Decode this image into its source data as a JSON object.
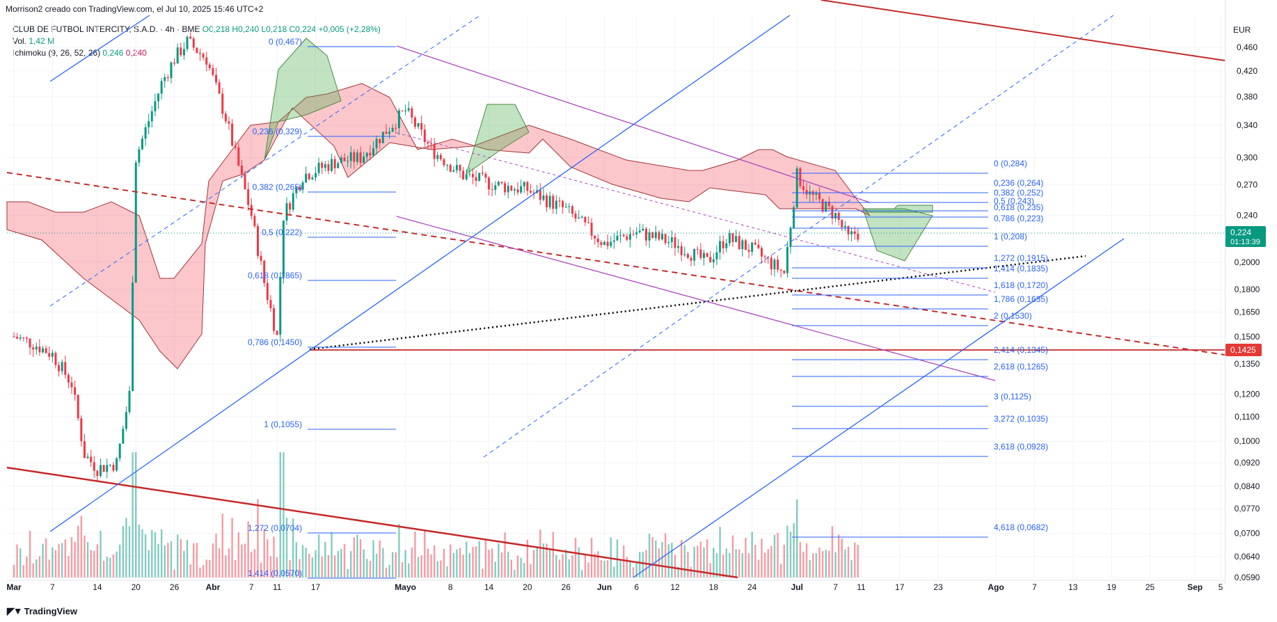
{
  "header": {
    "credit": "Morrison2 creado con TradingView.com, el Jul 10, 2025 15:46 UTC+2"
  },
  "legend": {
    "symbol": "CLUB DE FUTBOL INTERCITY, S.A.D. · 4h · BME",
    "ohlc": "O0,218 H0,240 L0,218 C0,224 +0,005 (+2,28%)",
    "volume_label": "Vol.",
    "volume_value": "1,42 M",
    "ichimoku_label": "Ichimoku (9, 26, 52, 26)",
    "ichimoku_a": "0,246",
    "ichimoku_b": "0,240"
  },
  "axis": {
    "currency": "EUR",
    "price_labels": [
      "0,460",
      "0,420",
      "0,380",
      "0,340",
      "0,300",
      "0,270",
      "0,240",
      "0,2000",
      "0,1800",
      "0,1650",
      "0,1500",
      "0,1350",
      "0,1200",
      "0,1100",
      "0,1000",
      "0,0920",
      "0,0840",
      "0,0770",
      "0,0700",
      "0,0640",
      "0,0590"
    ],
    "current_price": "0,224",
    "countdown": "01:13:39",
    "level_price": "0,1425",
    "time_labels": [
      "Mar",
      "7",
      "14",
      "20",
      "26",
      "Abr",
      "7",
      "11",
      "17",
      "Mayo",
      "8",
      "14",
      "20",
      "26",
      "Jun",
      "6",
      "12",
      "18",
      "24",
      "Jul",
      "7",
      "11",
      "17",
      "23",
      "Ago",
      "7",
      "13",
      "19",
      "25",
      "Sep",
      "5"
    ]
  },
  "fib_left": [
    "0 (0,467)",
    "0,236 (0,329)",
    "0,382 (0,265)",
    "0,5 (0,222)",
    "0,618 (0,1865)",
    "0,786 (0,1450)",
    "1 (0,1055)",
    "1,272 (0,0704)",
    "1,414 (0,0570)"
  ],
  "fib_right": [
    "0 (0,284)",
    "0,236 (0,264)",
    "0,382 (0,252)",
    "0,5 (0,243)",
    "0,618 (0,235)",
    "0,786 (0,223)",
    "1 (0,208)",
    "1,272 (0,1915)",
    "1,414 (0,1835)",
    "1,618 (0,1720)",
    "1,786 (0,1635)",
    "2 (0,1530)",
    "2,414 (0,1345)",
    "2,618 (0,1265)",
    "3 (0,1125)",
    "3,272 (0,1035)",
    "3,618 (0,0928)",
    "4,618 (0,0682)"
  ],
  "footer": {
    "brand": "TradingView"
  },
  "colors": {
    "up": "#089981",
    "down": "#f23645",
    "fib": "#2962ff",
    "channel": "#ab47bc",
    "trend": "#c62828"
  },
  "chart_data": {
    "type": "candlestick",
    "symbol": "CLUB DE FUTBOL INTERCITY, S.A.D.",
    "interval": "4h",
    "exchange": "BME",
    "currency": "EUR",
    "y_scale": "log",
    "last": {
      "open": 0.218,
      "high": 0.24,
      "low": 0.218,
      "close": 0.224,
      "change": 0.005,
      "change_pct": 2.28
    },
    "horizontal_level": 0.1425,
    "approx_closes": [
      {
        "x": "Mar 1",
        "y": 0.15
      },
      {
        "x": "Mar 4",
        "y": 0.146
      },
      {
        "x": "Mar 7",
        "y": 0.14
      },
      {
        "x": "Mar 10",
        "y": 0.125
      },
      {
        "x": "Mar 12",
        "y": 0.095
      },
      {
        "x": "Mar 14",
        "y": 0.09
      },
      {
        "x": "Mar 17",
        "y": 0.092
      },
      {
        "x": "Mar 19",
        "y": 0.12
      },
      {
        "x": "Mar 20",
        "y": 0.3
      },
      {
        "x": "Mar 24",
        "y": 0.4
      },
      {
        "x": "Mar 26",
        "y": 0.44
      },
      {
        "x": "Mar 28",
        "y": 0.47
      },
      {
        "x": "Mar 31",
        "y": 0.44
      },
      {
        "x": "Apr 3",
        "y": 0.35
      },
      {
        "x": "Apr 7",
        "y": 0.24
      },
      {
        "x": "Apr 9",
        "y": 0.185
      },
      {
        "x": "Apr 11",
        "y": 0.15
      },
      {
        "x": "Apr 12",
        "y": 0.24
      },
      {
        "x": "Apr 15",
        "y": 0.28
      },
      {
        "x": "Apr 20",
        "y": 0.295
      },
      {
        "x": "Apr 24",
        "y": 0.3
      },
      {
        "x": "May 1",
        "y": 0.36
      },
      {
        "x": "May 5",
        "y": 0.31
      },
      {
        "x": "May 10",
        "y": 0.28
      },
      {
        "x": "May 15",
        "y": 0.27
      },
      {
        "x": "May 20",
        "y": 0.265
      },
      {
        "x": "May 26",
        "y": 0.245
      },
      {
        "x": "Jun 1",
        "y": 0.215
      },
      {
        "x": "Jun 6",
        "y": 0.225
      },
      {
        "x": "Jun 12",
        "y": 0.215
      },
      {
        "x": "Jun 17",
        "y": 0.2
      },
      {
        "x": "Jun 20",
        "y": 0.22
      },
      {
        "x": "Jun 24",
        "y": 0.21
      },
      {
        "x": "Jun 29",
        "y": 0.192
      },
      {
        "x": "Jul 1",
        "y": 0.28
      },
      {
        "x": "Jul 3",
        "y": 0.26
      },
      {
        "x": "Jul 7",
        "y": 0.24
      },
      {
        "x": "Jul 9",
        "y": 0.219
      },
      {
        "x": "Jul 10",
        "y": 0.224
      }
    ]
  }
}
